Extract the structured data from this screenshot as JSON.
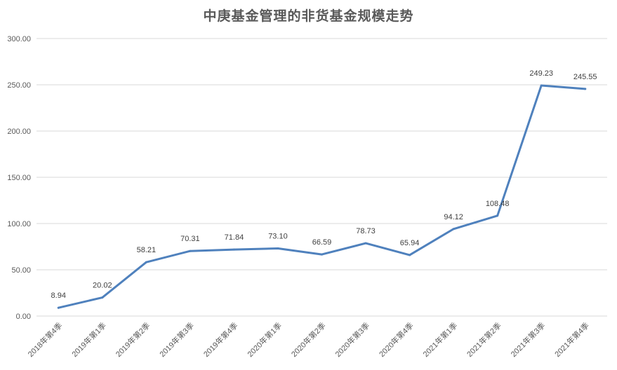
{
  "chart_data": {
    "type": "line",
    "title": "中庚基金管理的非货基金规模走势",
    "xlabel": "",
    "ylabel": "",
    "categories": [
      "2018年第4季",
      "2019年第1季",
      "2019年第2季",
      "2019年第3季",
      "2019年第4季",
      "2020年第1季",
      "2020年第2季",
      "2020年第3季",
      "2020年第4季",
      "2021年第1季",
      "2021年第2季",
      "2021年第3季",
      "2021年第4季"
    ],
    "series": [
      {
        "values": [
          8.94,
          20.02,
          58.21,
          70.31,
          71.84,
          73.1,
          66.59,
          78.73,
          65.94,
          94.12,
          108.48,
          249.23,
          245.55
        ],
        "labels": [
          "8.94",
          "20.02",
          "58.21",
          "70.31",
          "71.84",
          "73.10",
          "66.59",
          "78.73",
          "65.94",
          "94.12",
          "108.48",
          "249.23",
          "245.55"
        ],
        "color": "#4f81bd"
      }
    ],
    "ylim": [
      0,
      300
    ],
    "yticks": [
      "0.00",
      "50.00",
      "100.00",
      "150.00",
      "200.00",
      "250.00",
      "300.00"
    ],
    "grid": true,
    "legend": "none"
  }
}
